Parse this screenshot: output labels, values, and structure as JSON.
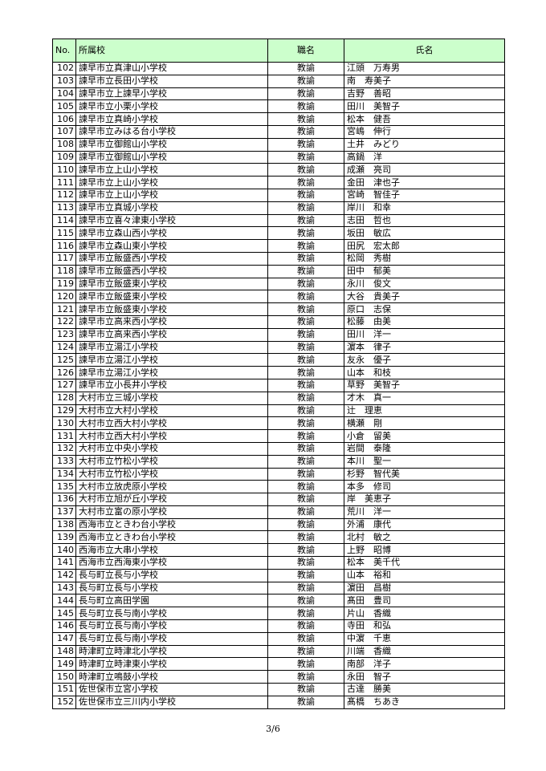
{
  "table": {
    "headers": {
      "no": "No.",
      "school": "所属校",
      "title": "職名",
      "name": "氏名"
    },
    "header_bg": "#ccffcc",
    "rows": [
      {
        "no": "102",
        "school": "諫早市立真津山小学校",
        "title": "教諭",
        "name": "江頭　万寿男"
      },
      {
        "no": "103",
        "school": "諫早市立長田小学校",
        "title": "教諭",
        "name": "南　寿美子"
      },
      {
        "no": "104",
        "school": "諫早市立上諫早小学校",
        "title": "教諭",
        "name": "吉野　善昭"
      },
      {
        "no": "105",
        "school": "諫早市立小栗小学校",
        "title": "教諭",
        "name": "田川　美智子"
      },
      {
        "no": "106",
        "school": "諫早市立真崎小学校",
        "title": "教諭",
        "name": "松本　健吾"
      },
      {
        "no": "107",
        "school": "諫早市立みはる台小学校",
        "title": "教諭",
        "name": "宮嶋　伸行"
      },
      {
        "no": "108",
        "school": "諫早市立御館山小学校",
        "title": "教諭",
        "name": "土井　みどり"
      },
      {
        "no": "109",
        "school": "諫早市立御館山小学校",
        "title": "教諭",
        "name": "高鍋　洋"
      },
      {
        "no": "110",
        "school": "諫早市立上山小学校",
        "title": "教諭",
        "name": "成瀬　亮司"
      },
      {
        "no": "111",
        "school": "諫早市立上山小学校",
        "title": "教諭",
        "name": "金田　津也子"
      },
      {
        "no": "112",
        "school": "諫早市立上山小学校",
        "title": "教諭",
        "name": "宮崎　智佳子"
      },
      {
        "no": "113",
        "school": "諫早市立真城小学校",
        "title": "教諭",
        "name": "岸川　和幸"
      },
      {
        "no": "114",
        "school": "諫早市立喜々津東小学校",
        "title": "教諭",
        "name": "志田　哲也"
      },
      {
        "no": "115",
        "school": "諫早市立森山西小学校",
        "title": "教諭",
        "name": "坂田　敏広"
      },
      {
        "no": "116",
        "school": "諫早市立森山東小学校",
        "title": "教諭",
        "name": "田尻　宏太郎"
      },
      {
        "no": "117",
        "school": "諫早市立飯盛西小学校",
        "title": "教諭",
        "name": "松岡　秀樹"
      },
      {
        "no": "118",
        "school": "諫早市立飯盛西小学校",
        "title": "教諭",
        "name": "田中　郁美"
      },
      {
        "no": "119",
        "school": "諫早市立飯盛東小学校",
        "title": "教諭",
        "name": "永川　俊文"
      },
      {
        "no": "120",
        "school": "諫早市立飯盛東小学校",
        "title": "教諭",
        "name": "大谷　貴美子"
      },
      {
        "no": "121",
        "school": "諫早市立飯盛東小学校",
        "title": "教諭",
        "name": "原口　志保"
      },
      {
        "no": "122",
        "school": "諫早市立高来西小学校",
        "title": "教諭",
        "name": "松藤　由美"
      },
      {
        "no": "123",
        "school": "諫早市立高来西小学校",
        "title": "教諭",
        "name": "田川　洋一"
      },
      {
        "no": "124",
        "school": "諫早市立湯江小学校",
        "title": "教諭",
        "name": "濵本　律子"
      },
      {
        "no": "125",
        "school": "諫早市立湯江小学校",
        "title": "教諭",
        "name": "友永　優子"
      },
      {
        "no": "126",
        "school": "諫早市立湯江小学校",
        "title": "教諭",
        "name": "山本　和枝"
      },
      {
        "no": "127",
        "school": "諫早市立小長井小学校",
        "title": "教諭",
        "name": "草野　美智子"
      },
      {
        "no": "128",
        "school": "大村市立三城小学校",
        "title": "教諭",
        "name": "才木　真一"
      },
      {
        "no": "129",
        "school": "大村市立大村小学校",
        "title": "教諭",
        "name": "辻　理恵"
      },
      {
        "no": "130",
        "school": "大村市立西大村小学校",
        "title": "教諭",
        "name": "横瀬　剛"
      },
      {
        "no": "131",
        "school": "大村市立西大村小学校",
        "title": "教諭",
        "name": "小倉　留美"
      },
      {
        "no": "132",
        "school": "大村市立中央小学校",
        "title": "教諭",
        "name": "岩間　泰隆"
      },
      {
        "no": "133",
        "school": "大村市立竹松小学校",
        "title": "教諭",
        "name": "本川　聖一"
      },
      {
        "no": "134",
        "school": "大村市立竹松小学校",
        "title": "教諭",
        "name": "杉野　智代美"
      },
      {
        "no": "135",
        "school": "大村市立放虎原小学校",
        "title": "教諭",
        "name": "本多　修司"
      },
      {
        "no": "136",
        "school": "大村市立旭が丘小学校",
        "title": "教諭",
        "name": "岸　美恵子"
      },
      {
        "no": "137",
        "school": "大村市立富の原小学校",
        "title": "教諭",
        "name": "荒川　洋一"
      },
      {
        "no": "138",
        "school": "西海市立ときわ台小学校",
        "title": "教諭",
        "name": "外浦　康代"
      },
      {
        "no": "139",
        "school": "西海市立ときわ台小学校",
        "title": "教諭",
        "name": "北村　敏之"
      },
      {
        "no": "140",
        "school": "西海市立大串小学校",
        "title": "教諭",
        "name": "上野　昭博"
      },
      {
        "no": "141",
        "school": "西海市立西海東小学校",
        "title": "教諭",
        "name": "松本　美千代"
      },
      {
        "no": "142",
        "school": "長与町立長与小学校",
        "title": "教諭",
        "name": "山本　裕和"
      },
      {
        "no": "143",
        "school": "長与町立長与小学校",
        "title": "教諭",
        "name": "濵田　昌樹"
      },
      {
        "no": "144",
        "school": "長与町立高田学園",
        "title": "教諭",
        "name": "髙田　豊司"
      },
      {
        "no": "145",
        "school": "長与町立長与南小学校",
        "title": "教諭",
        "name": "片山　香織"
      },
      {
        "no": "146",
        "school": "長与町立長与南小学校",
        "title": "教諭",
        "name": "寺田　和弘"
      },
      {
        "no": "147",
        "school": "長与町立長与南小学校",
        "title": "教諭",
        "name": "中濵　千恵"
      },
      {
        "no": "148",
        "school": "時津町立時津北小学校",
        "title": "教諭",
        "name": "川端　香織"
      },
      {
        "no": "149",
        "school": "時津町立時津東小学校",
        "title": "教諭",
        "name": "南部　洋子"
      },
      {
        "no": "150",
        "school": "時津町立鳴鼓小学校",
        "title": "教諭",
        "name": "永田　智子"
      },
      {
        "no": "151",
        "school": "佐世保市立宮小学校",
        "title": "教諭",
        "name": "古達　勝美"
      },
      {
        "no": "152",
        "school": "佐世保市立三川内小学校",
        "title": "教諭",
        "name": "髙橋　ちあき"
      }
    ]
  },
  "footer": {
    "page": "3/6"
  }
}
